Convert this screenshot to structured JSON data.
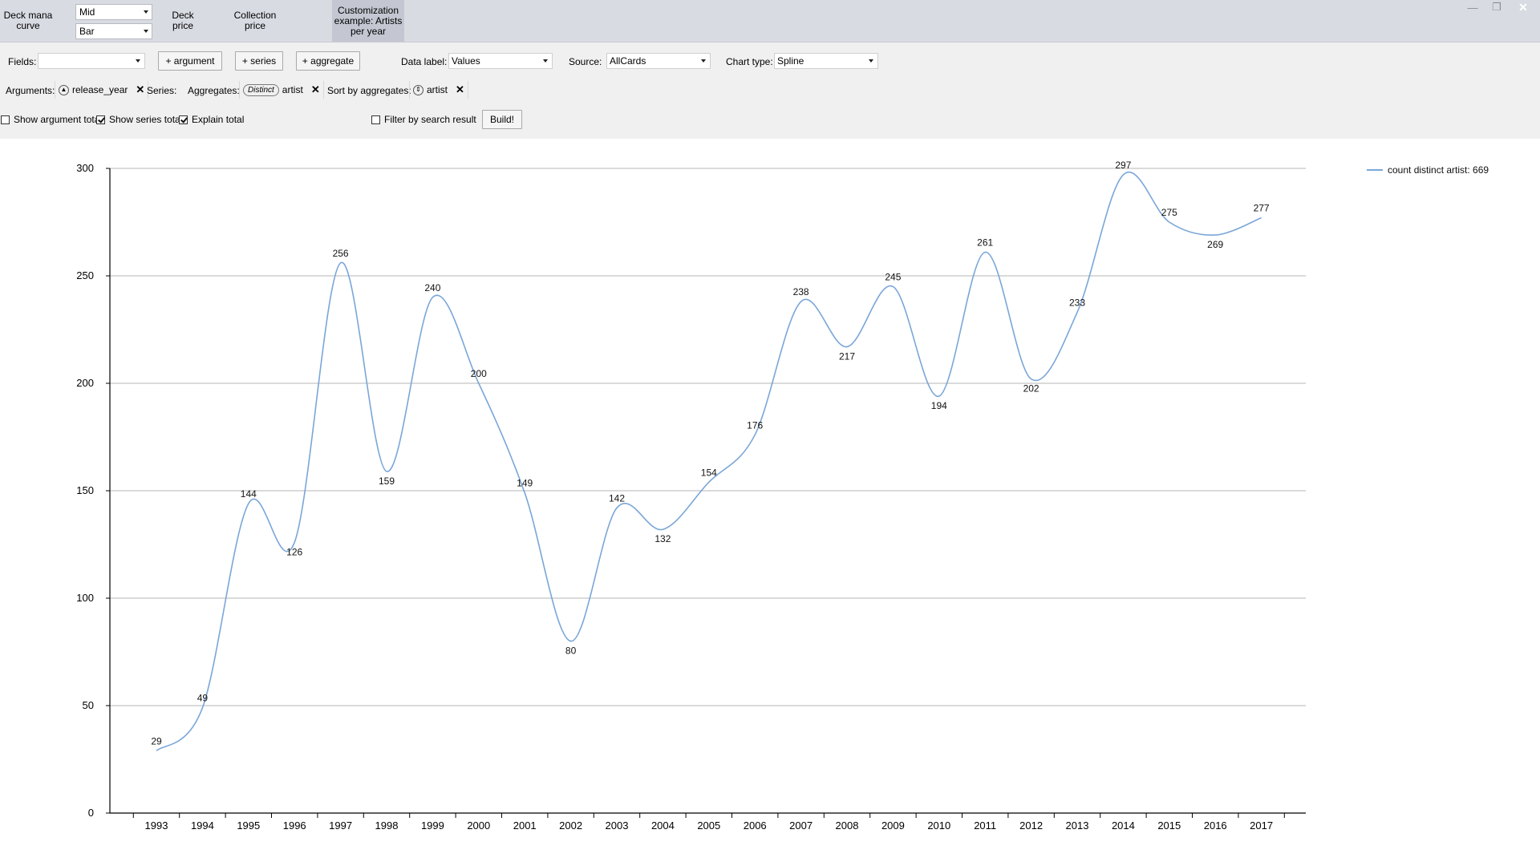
{
  "tabs": {
    "deck_mana_curve": "Deck mana\ncurve",
    "deck_price": "Deck\nprice",
    "collection_price": "Collection\nprice",
    "customization": "Customization\nexample: Artists\nper year"
  },
  "combos": {
    "curve_mode": "Mid",
    "curve_chart": "Bar"
  },
  "window_buttons": {
    "minimize": "—",
    "restore": "❐",
    "close": "✕"
  },
  "builder": {
    "fields_label": "Fields:",
    "fields_value": "",
    "add_argument": "+ argument",
    "add_series": "+ series",
    "add_aggregate": "+ aggregate",
    "data_label_label": "Data label:",
    "data_label_value": "Values",
    "source_label": "Source:",
    "source_value": "AllCards",
    "chart_type_label": "Chart type:",
    "chart_type_value": "Spline",
    "arguments_label": "Arguments:",
    "argument_token": "release_year",
    "series_label": "Series:",
    "aggregates_label": "Aggregates:",
    "aggregate_pill": "Distinct",
    "aggregate_field": "artist",
    "sort_label": "Sort by aggregates:",
    "sort_field": "artist",
    "remove": "✕",
    "show_argument_total": "Show argument total",
    "show_argument_total_checked": false,
    "show_series_total": "Show series total",
    "show_series_total_checked": true,
    "explain_total": "Explain total",
    "explain_total_checked": true,
    "filter_by_search": "Filter by search result",
    "filter_by_search_checked": false,
    "build": "Build!"
  },
  "chart_data": {
    "type": "line",
    "smooth": true,
    "x": [
      "1993",
      "1994",
      "1995",
      "1996",
      "1997",
      "1998",
      "1999",
      "2000",
      "2001",
      "2002",
      "2003",
      "2004",
      "2005",
      "2006",
      "2007",
      "2008",
      "2009",
      "2010",
      "2011",
      "2012",
      "2013",
      "2014",
      "2015",
      "2016",
      "2017"
    ],
    "series": [
      {
        "name": "count distinct artist: 669",
        "values": [
          29,
          49,
          144,
          126,
          256,
          159,
          240,
          200,
          149,
          80,
          142,
          132,
          154,
          176,
          238,
          217,
          245,
          194,
          261,
          202,
          233,
          297,
          275,
          269,
          277
        ]
      }
    ],
    "ylim": [
      0,
      300
    ],
    "yticks": [
      0,
      50,
      100,
      150,
      200,
      250,
      300
    ],
    "grid": true,
    "legend": "top-right",
    "line_color": "#7aa6d8",
    "title": "",
    "xlabel": "",
    "ylabel": ""
  }
}
